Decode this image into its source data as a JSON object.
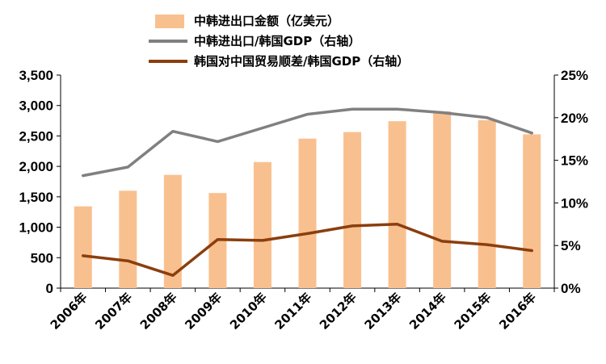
{
  "chart_data": {
    "type": "bar",
    "categories": [
      "2006年",
      "2007年",
      "2008年",
      "2009年",
      "2010年",
      "2011年",
      "2012年",
      "2013年",
      "2014年",
      "2015年",
      "2016年"
    ],
    "series": [
      {
        "name": "中韩进出口金额（亿美元）",
        "type": "bar",
        "axis": "left",
        "color": "#F9C08F",
        "values": [
          1343,
          1600,
          1861,
          1562,
          2071,
          2456,
          2563,
          2742,
          2905,
          2759,
          2527
        ]
      },
      {
        "name": "中韩进出口/韩国GDP（右轴）",
        "type": "line",
        "axis": "right",
        "color": "#808080",
        "values": [
          13.2,
          14.2,
          18.4,
          17.2,
          18.8,
          20.4,
          21.0,
          21.0,
          20.6,
          20.0,
          18.2
        ]
      },
      {
        "name": "韩国对中国贸易顺差/韩国GDP（右轴）",
        "type": "line",
        "axis": "right",
        "color": "#8B3E0E",
        "values": [
          3.8,
          3.2,
          1.5,
          5.7,
          5.6,
          6.4,
          7.3,
          7.5,
          5.5,
          5.1,
          4.4
        ]
      }
    ],
    "y_left": {
      "range": [
        0,
        3500
      ],
      "ticks": [
        0,
        500,
        1000,
        1500,
        2000,
        2500,
        3000,
        3500
      ],
      "tick_labels": [
        "0",
        "500",
        "1,000",
        "1,500",
        "2,000",
        "2,500",
        "3,000",
        "3,500"
      ]
    },
    "y_right": {
      "range": [
        0,
        25
      ],
      "ticks": [
        0,
        5,
        10,
        15,
        20,
        25
      ],
      "tick_labels": [
        "0%",
        "5%",
        "10%",
        "15%",
        "20%",
        "25%"
      ]
    },
    "legend_position": "top",
    "grid": false
  }
}
